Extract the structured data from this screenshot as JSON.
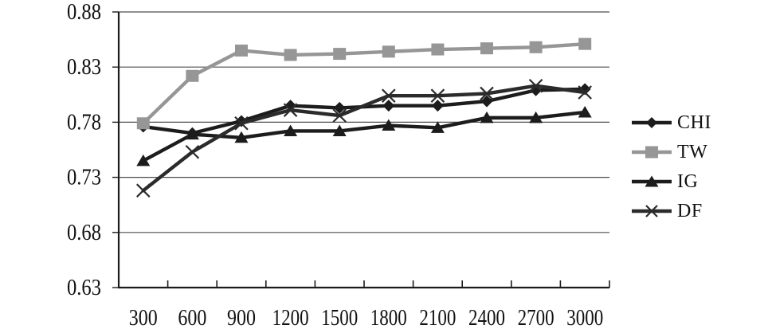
{
  "figure": {
    "background": "#ffffff",
    "black_series_color": "#1c1c1c",
    "gray_series_color": "#969696",
    "grid_color": "#4d4d4d",
    "axis_color": "#1c1c1c"
  },
  "chart_data": {
    "type": "line",
    "x": [
      300,
      600,
      900,
      1200,
      1500,
      1800,
      2100,
      2400,
      2700,
      3000
    ],
    "x_labels": [
      "300",
      "600",
      "900",
      "1200",
      "1500",
      "1800",
      "2100",
      "2400",
      "2700",
      "3000"
    ],
    "series": [
      {
        "name": "CHI",
        "marker": "diamond",
        "color": "#1c1c1c",
        "values": [
          0.776,
          0.77,
          0.781,
          0.795,
          0.793,
          0.795,
          0.795,
          0.799,
          0.809,
          0.81
        ]
      },
      {
        "name": "TW",
        "marker": "square",
        "color": "#969696",
        "values": [
          0.779,
          0.822,
          0.845,
          0.841,
          0.842,
          0.844,
          0.846,
          0.847,
          0.848,
          0.851
        ]
      },
      {
        "name": "IG",
        "marker": "triangle",
        "color": "#1c1c1c",
        "values": [
          0.745,
          0.769,
          0.766,
          0.772,
          0.772,
          0.777,
          0.775,
          0.784,
          0.784,
          0.789
        ]
      },
      {
        "name": "DF",
        "marker": "x",
        "color": "#2b2b2b",
        "values": [
          0.718,
          0.753,
          0.779,
          0.791,
          0.786,
          0.804,
          0.804,
          0.806,
          0.813,
          0.807
        ]
      }
    ],
    "ylim": [
      0.63,
      0.88
    ],
    "yticks": [
      0.63,
      0.68,
      0.73,
      0.78,
      0.83,
      0.88
    ],
    "ytick_labels": [
      "0.63",
      "0.68",
      "0.73",
      "0.78",
      "0.83",
      "0.88"
    ],
    "xlabel": "",
    "ylabel": "",
    "title": "",
    "grid": true,
    "legend_position": "right"
  }
}
